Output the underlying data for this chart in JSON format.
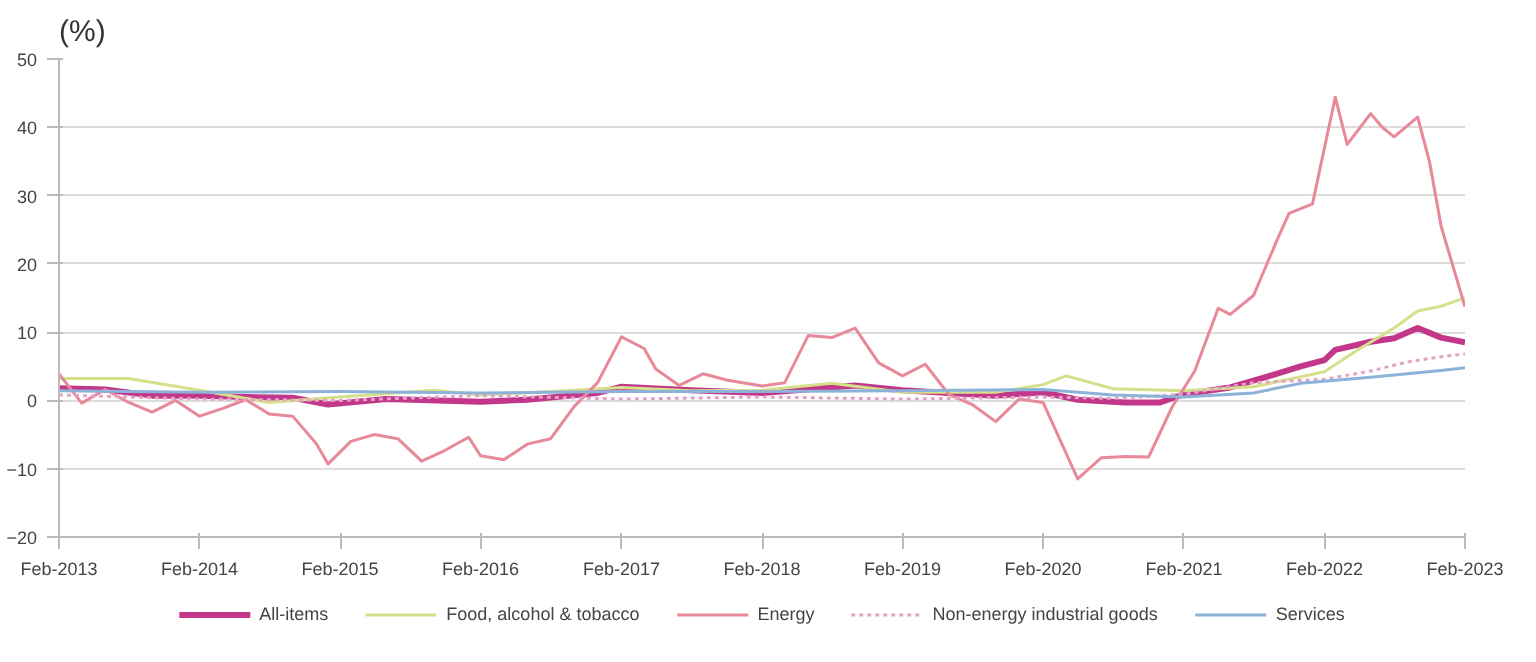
{
  "chart_data": {
    "type": "line",
    "ylabel": "(%)",
    "ylim": [
      -20,
      50
    ],
    "yticks": [
      -20,
      -10,
      0,
      10,
      20,
      30,
      40,
      50
    ],
    "xlim": [
      "2013-02",
      "2023-02"
    ],
    "xticks": [
      {
        "value": "2013-02",
        "label": "Feb-2013"
      },
      {
        "value": "2014-02",
        "label": "Feb-2014"
      },
      {
        "value": "2015-02",
        "label": "Feb-2015"
      },
      {
        "value": "2016-02",
        "label": "Feb-2016"
      },
      {
        "value": "2017-02",
        "label": "Feb-2017"
      },
      {
        "value": "2018-02",
        "label": "Feb-2018"
      },
      {
        "value": "2019-02",
        "label": "Feb-2019"
      },
      {
        "value": "2020-02",
        "label": "Feb-2020"
      },
      {
        "value": "2021-02",
        "label": "Feb-2021"
      },
      {
        "value": "2022-02",
        "label": "Feb-2022"
      },
      {
        "value": "2023-02",
        "label": "Feb-2023"
      }
    ],
    "grid": "y",
    "legend": "bottom",
    "marker": "none",
    "series": [
      {
        "name": "All-items",
        "color": "#c2378a",
        "line_style": "solid",
        "x": [
          "2013-02",
          "2013-06",
          "2013-10",
          "2014-02",
          "2014-06",
          "2014-10",
          "2015-01",
          "2015-06",
          "2016-02",
          "2016-06",
          "2016-12",
          "2017-02",
          "2017-08",
          "2018-02",
          "2018-10",
          "2019-02",
          "2019-10",
          "2020-02",
          "2020-05",
          "2020-09",
          "2020-12",
          "2021-02",
          "2021-06",
          "2021-09",
          "2021-12",
          "2022-02",
          "2022-03",
          "2022-06",
          "2022-08",
          "2022-10",
          "2022-12",
          "2023-02"
        ],
        "values": [
          1.8,
          1.6,
          0.7,
          0.7,
          0.5,
          0.4,
          -0.6,
          0.2,
          -0.2,
          0.1,
          1.1,
          2.0,
          1.5,
          1.1,
          2.2,
          1.5,
          0.7,
          1.2,
          0.1,
          -0.3,
          -0.3,
          0.9,
          1.9,
          3.4,
          5.0,
          5.9,
          7.4,
          8.6,
          9.1,
          10.6,
          9.2,
          8.5
        ]
      },
      {
        "name": "Food, alcohol & tobacco",
        "color": "#d6df8a",
        "line_style": "solid",
        "x": [
          "2013-02",
          "2013-08",
          "2014-02",
          "2014-08",
          "2015-02",
          "2015-10",
          "2016-02",
          "2016-08",
          "2017-02",
          "2017-08",
          "2018-02",
          "2018-08",
          "2019-02",
          "2019-10",
          "2020-02",
          "2020-04",
          "2020-08",
          "2021-02",
          "2021-08",
          "2022-02",
          "2022-05",
          "2022-08",
          "2022-10",
          "2022-12",
          "2023-02"
        ],
        "values": [
          3.2,
          3.2,
          1.5,
          -0.3,
          0.5,
          1.5,
          0.8,
          1.3,
          1.9,
          1.4,
          1.5,
          2.5,
          1.2,
          1.2,
          2.3,
          3.6,
          1.7,
          1.4,
          2.0,
          4.2,
          7.5,
          10.6,
          13.1,
          13.8,
          15.0
        ]
      },
      {
        "name": "Energy",
        "color": "#e8899a",
        "line_style": "solid",
        "x": [
          "2013-02",
          "2013-04",
          "2013-06",
          "2013-08",
          "2013-10",
          "2013-12",
          "2014-02",
          "2014-04",
          "2014-06",
          "2014-08",
          "2014-10",
          "2014-12",
          "2015-01",
          "2015-03",
          "2015-05",
          "2015-07",
          "2015-09",
          "2015-11",
          "2016-01",
          "2016-02",
          "2016-04",
          "2016-06",
          "2016-08",
          "2016-10",
          "2016-12",
          "2017-02",
          "2017-04",
          "2017-05",
          "2017-07",
          "2017-09",
          "2017-11",
          "2018-02",
          "2018-04",
          "2018-06",
          "2018-08",
          "2018-10",
          "2018-12",
          "2019-02",
          "2019-04",
          "2019-06",
          "2019-08",
          "2019-10",
          "2019-12",
          "2020-02",
          "2020-05",
          "2020-07",
          "2020-09",
          "2020-11",
          "2021-01",
          "2021-03",
          "2021-05",
          "2021-06",
          "2021-08",
          "2021-10",
          "2021-11",
          "2022-01",
          "2022-03",
          "2022-04",
          "2022-06",
          "2022-07",
          "2022-08",
          "2022-10",
          "2022-11",
          "2022-12",
          "2023-02"
        ],
        "values": [
          3.9,
          -0.4,
          1.6,
          -0.3,
          -1.7,
          0.0,
          -2.3,
          -1.2,
          0.1,
          -2.0,
          -2.3,
          -6.3,
          -9.3,
          -6.0,
          -5.0,
          -5.6,
          -8.9,
          -7.3,
          -5.4,
          -8.1,
          -8.7,
          -6.4,
          -5.6,
          -0.9,
          2.6,
          9.3,
          7.6,
          4.6,
          2.2,
          3.9,
          3.0,
          2.1,
          2.6,
          9.5,
          9.2,
          10.6,
          5.5,
          3.6,
          5.3,
          0.9,
          -0.6,
          -3.1,
          0.2,
          -0.3,
          -11.5,
          -8.4,
          -8.2,
          -8.3,
          -1.0,
          4.3,
          13.5,
          12.6,
          15.4,
          23.5,
          27.4,
          28.8,
          44.4,
          37.5,
          42.0,
          40.0,
          38.6,
          41.5,
          34.9,
          25.5,
          13.7
        ]
      },
      {
        "name": "Non-energy industrial goods",
        "color": "#e3a3c4",
        "line_style": "dotted",
        "x": [
          "2013-02",
          "2014-02",
          "2015-02",
          "2016-02",
          "2017-02",
          "2018-02",
          "2019-02",
          "2020-02",
          "2020-08",
          "2021-02",
          "2021-08",
          "2022-02",
          "2022-06",
          "2022-09",
          "2022-12",
          "2023-02"
        ],
        "values": [
          0.8,
          0.2,
          0.0,
          0.7,
          0.2,
          0.5,
          0.2,
          0.5,
          0.3,
          0.9,
          2.6,
          3.1,
          4.3,
          5.6,
          6.4,
          6.8
        ]
      },
      {
        "name": "Services",
        "color": "#8cb2da",
        "line_style": "solid",
        "x": [
          "2013-02",
          "2014-02",
          "2015-02",
          "2016-02",
          "2017-02",
          "2018-02",
          "2019-02",
          "2020-02",
          "2020-08",
          "2021-02",
          "2021-08",
          "2021-12",
          "2022-06",
          "2022-12",
          "2023-02"
        ],
        "values": [
          1.4,
          1.2,
          1.3,
          1.1,
          1.3,
          1.3,
          1.4,
          1.6,
          0.8,
          0.5,
          1.1,
          2.5,
          3.4,
          4.4,
          4.8
        ]
      }
    ]
  }
}
